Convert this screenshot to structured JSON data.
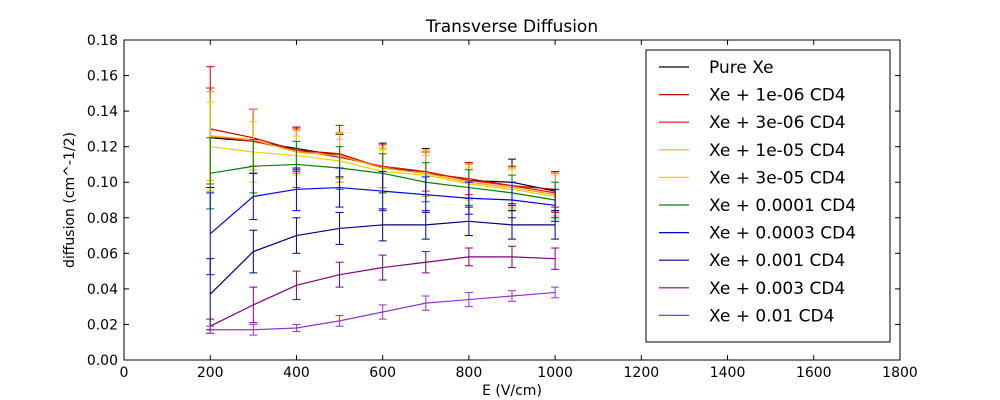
{
  "chart_data": {
    "type": "line",
    "title": "Transverse Diffusion",
    "xlabel": "E (V/cm)",
    "ylabel": "diffusion (cm^-1/2)",
    "xlim": [
      0,
      1800
    ],
    "ylim": [
      0.0,
      0.18
    ],
    "xticks": [
      "0",
      "200",
      "400",
      "600",
      "800",
      "1000",
      "1200",
      "1400",
      "1600",
      "1800"
    ],
    "xtick_values": [
      0,
      200,
      400,
      600,
      800,
      1000,
      1200,
      1400,
      1600,
      1800
    ],
    "yticks": [
      "0.00",
      "0.02",
      "0.04",
      "0.06",
      "0.08",
      "0.10",
      "0.12",
      "0.14",
      "0.16",
      "0.18"
    ],
    "ytick_values": [
      0.0,
      0.02,
      0.04,
      0.06,
      0.08,
      0.1,
      0.12,
      0.14,
      0.16,
      0.18
    ],
    "grid": false,
    "legend_position": "right",
    "x": [
      200,
      300,
      400,
      500,
      600,
      700,
      800,
      900,
      1000
    ],
    "series": [
      {
        "name": "Pure Xe",
        "color": "#000000",
        "values": [
          0.125,
          0.123,
          0.119,
          0.115,
          0.108,
          0.106,
          0.101,
          0.1,
          0.095
        ],
        "errors": [
          0.028,
          0.018,
          0.012,
          0.012,
          0.014,
          0.013,
          0.01,
          0.013,
          0.011
        ]
      },
      {
        "name": "Xe + 1e-06 CD4",
        "color": "#cc0000",
        "values": [
          0.13,
          0.125,
          0.118,
          0.116,
          0.108,
          0.105,
          0.102,
          0.098,
          0.096
        ],
        "errors": [
          0.035,
          0.016,
          0.013,
          0.016,
          0.011,
          0.012,
          0.009,
          0.011,
          0.01
        ]
      },
      {
        "name": "Xe + 3e-06 CD4",
        "color": "#ee1111",
        "values": [
          0.126,
          0.123,
          0.118,
          0.114,
          0.109,
          0.106,
          0.101,
          0.098,
          0.094
        ],
        "errors": [
          0.027,
          0.018,
          0.012,
          0.014,
          0.012,
          0.011,
          0.01,
          0.01,
          0.011
        ]
      },
      {
        "name": "Xe + 1e-05 CD4",
        "color": "#ffa500",
        "values": [
          0.126,
          0.124,
          0.117,
          0.115,
          0.108,
          0.105,
          0.1,
          0.097,
          0.093
        ],
        "errors": [
          0.025,
          0.017,
          0.012,
          0.013,
          0.011,
          0.013,
          0.01,
          0.011,
          0.012
        ]
      },
      {
        "name": "Xe + 3e-05 CD4",
        "color": "#f0d000",
        "values": [
          0.12,
          0.117,
          0.115,
          0.112,
          0.106,
          0.104,
          0.099,
          0.096,
          0.092
        ],
        "errors": [
          0.025,
          0.017,
          0.011,
          0.012,
          0.012,
          0.011,
          0.009,
          0.011,
          0.012
        ]
      },
      {
        "name": "Xe + 0.0001 CD4",
        "color": "#008000",
        "values": [
          0.105,
          0.109,
          0.11,
          0.108,
          0.105,
          0.1,
          0.097,
          0.094,
          0.09
        ],
        "errors": [
          0.02,
          0.015,
          0.013,
          0.012,
          0.011,
          0.011,
          0.01,
          0.01,
          0.01
        ]
      },
      {
        "name": "Xe + 0.0003 CD4",
        "color": "#0000ee",
        "values": [
          0.071,
          0.092,
          0.096,
          0.097,
          0.095,
          0.093,
          0.091,
          0.09,
          0.087
        ],
        "errors": [
          0.023,
          0.013,
          0.012,
          0.011,
          0.011,
          0.01,
          0.009,
          0.01,
          0.009
        ]
      },
      {
        "name": "Xe + 0.001 CD4",
        "color": "#000080",
        "values": [
          0.037,
          0.061,
          0.07,
          0.074,
          0.076,
          0.076,
          0.078,
          0.076,
          0.076
        ],
        "errors": [
          0.02,
          0.012,
          0.01,
          0.009,
          0.009,
          0.008,
          0.008,
          0.008,
          0.008
        ]
      },
      {
        "name": "Xe + 0.003 CD4",
        "color": "#800080",
        "values": [
          0.019,
          0.031,
          0.042,
          0.048,
          0.052,
          0.055,
          0.058,
          0.058,
          0.057
        ],
        "errors": [
          0.004,
          0.01,
          0.008,
          0.007,
          0.007,
          0.006,
          0.005,
          0.006,
          0.006
        ]
      },
      {
        "name": "Xe + 0.01 CD4",
        "color": "#9932cc",
        "values": [
          0.017,
          0.017,
          0.018,
          0.022,
          0.027,
          0.032,
          0.034,
          0.036,
          0.038
        ],
        "errors": [
          0.002,
          0.003,
          0.002,
          0.003,
          0.004,
          0.004,
          0.004,
          0.003,
          0.003
        ]
      }
    ]
  }
}
